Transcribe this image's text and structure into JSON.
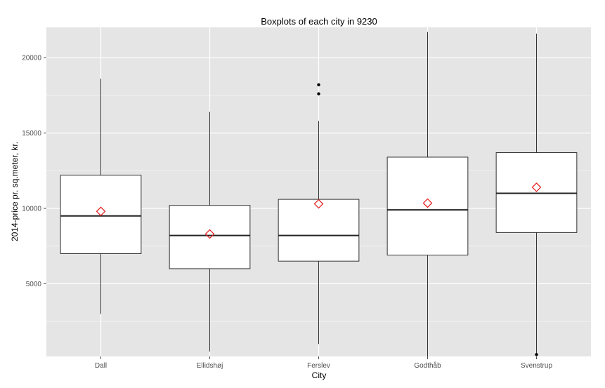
{
  "chart_data": {
    "type": "boxplot",
    "title": "Boxplots of each city in 9230",
    "xlabel": "City",
    "ylabel": "2014-price pr. sq.meter, kr.",
    "ylim": [
      0,
      22000
    ],
    "yticks": [
      5000,
      10000,
      15000,
      20000
    ],
    "grid": true,
    "categories": [
      "Dall",
      "Ellidshøj",
      "Ferslev",
      "Godthåb",
      "Svenstrup"
    ],
    "boxes": [
      {
        "min": 3000,
        "q1": 7000,
        "median": 9500,
        "q3": 12200,
        "max": 18600,
        "mean": 9800,
        "outliers": []
      },
      {
        "min": 500,
        "q1": 6000,
        "median": 8200,
        "q3": 10200,
        "max": 16400,
        "mean": 8300,
        "outliers": []
      },
      {
        "min": 1000,
        "q1": 6500,
        "median": 8200,
        "q3": 10600,
        "max": 15800,
        "mean": 10300,
        "outliers": [
          17600,
          18200
        ]
      },
      {
        "min": 0,
        "q1": 6900,
        "median": 9900,
        "q3": 13400,
        "max": 21700,
        "mean": 10350,
        "outliers": []
      },
      {
        "min": 300,
        "q1": 8400,
        "median": 11000,
        "q3": 13700,
        "max": 21600,
        "mean": 11400,
        "outliers": [
          300
        ]
      }
    ],
    "colors": {
      "panel": "#e5e5e5",
      "grid_major": "#ffffff",
      "grid_minor": "#f2f2f2",
      "box_fill": "#ffffff",
      "box_line": "#333333",
      "mean_marker": "#e31a1c"
    }
  }
}
